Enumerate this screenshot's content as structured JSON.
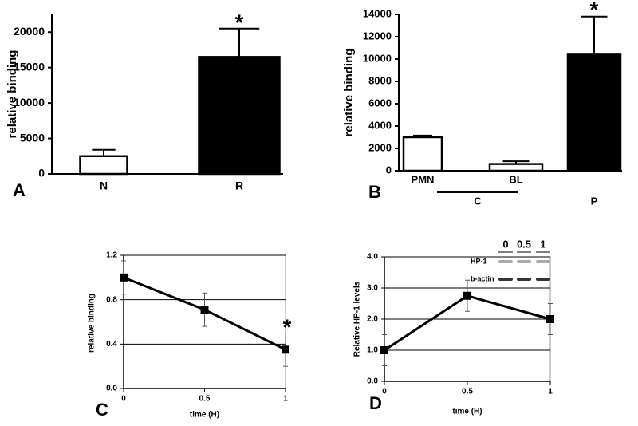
{
  "chart_data": [
    {
      "type": "bar",
      "panel_label": "A",
      "y_label": "relative binding",
      "categories": [
        "N",
        "R"
      ],
      "values": [
        2500,
        16500
      ],
      "errors": [
        900,
        4000
      ],
      "colors": [
        "#ffffff",
        "#000000"
      ],
      "ylim": [
        0,
        22500
      ],
      "yticks": [
        0,
        5000,
        10000,
        15000,
        20000
      ],
      "annotation": "*"
    },
    {
      "type": "bar",
      "panel_label": "B",
      "y_label": "relative binding",
      "categories": [
        "PMN",
        "BL",
        "P"
      ],
      "values": [
        3000,
        600,
        10400
      ],
      "errors": [
        150,
        250,
        3400
      ],
      "colors": [
        "#ffffff",
        "#ffffff",
        "#000000"
      ],
      "ylim": [
        0,
        14000
      ],
      "yticks": [
        0,
        2000,
        4000,
        6000,
        8000,
        10000,
        12000,
        14000
      ],
      "group_label": "C",
      "annotation": "*"
    },
    {
      "type": "line",
      "panel_label": "C",
      "x_label": "time (H)",
      "y_label": "relative binding",
      "x": [
        0,
        0.5,
        1
      ],
      "values": [
        1.0,
        0.71,
        0.35
      ],
      "errors": [
        0.15,
        0.15,
        0.15
      ],
      "color": "#000000",
      "xlim": [
        0,
        1
      ],
      "xticks": [
        0,
        0.5,
        1
      ],
      "ylim": [
        0,
        1.2
      ],
      "yticks": [
        {
          "value": 0,
          "label": "0.0"
        },
        0.4,
        0.8,
        1.2
      ],
      "grid": true,
      "annotation": "*"
    },
    {
      "type": "line",
      "panel_label": "D",
      "x_label": "time (H)",
      "y_label": "Relative HP-1 levels",
      "x": [
        0,
        0.5,
        1
      ],
      "values": [
        1.0,
        2.75,
        2.0
      ],
      "errors": [
        0.5,
        0.5,
        0.5
      ],
      "color": "#000000",
      "xlim": [
        0,
        1
      ],
      "xticks": [
        0,
        0.5,
        1
      ],
      "ylim": [
        0,
        4
      ],
      "yticks": [
        {
          "value": 0,
          "label": "0.0"
        },
        {
          "value": 1,
          "label": "1.0"
        },
        {
          "value": 2,
          "label": "2.0"
        },
        {
          "value": 3,
          "label": "3.0"
        },
        {
          "value": 4,
          "label": "4.0"
        }
      ],
      "grid": true,
      "inset": {
        "lanes": [
          "0",
          "0.5",
          "1"
        ],
        "rows": [
          "HP-1",
          "b-actin"
        ]
      }
    }
  ]
}
